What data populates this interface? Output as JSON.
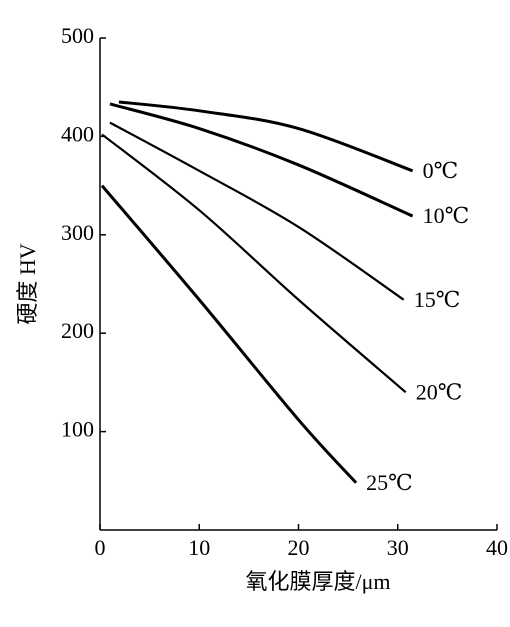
{
  "chart_data": {
    "type": "line",
    "xlabel": "氧化膜厚度/μm",
    "ylabel": "硬度  HV",
    "xlim": [
      0,
      40
    ],
    "xticks": [
      0,
      10,
      20,
      30,
      40
    ],
    "ylim": [
      0,
      500
    ],
    "yticks": [
      100,
      200,
      300,
      400,
      500
    ],
    "color": "#000000",
    "series": [
      {
        "name": "0℃",
        "x": [
          1.9,
          10,
          20,
          31.5
        ],
        "values": [
          435,
          426,
          408,
          365
        ]
      },
      {
        "name": "10℃",
        "x": [
          1,
          10,
          20,
          31.5
        ],
        "values": [
          433,
          408,
          371,
          319
        ]
      },
      {
        "name": "15℃",
        "x": [
          1,
          10,
          20,
          30.6
        ],
        "values": [
          414,
          365,
          308,
          234
        ]
      },
      {
        "name": "20℃",
        "x": [
          0.2,
          10,
          20,
          30.8
        ],
        "values": [
          402,
          325,
          234,
          140
        ]
      },
      {
        "name": "25℃",
        "x": [
          0.2,
          10,
          20,
          25.8
        ],
        "values": [
          350,
          234,
          112,
          48
        ]
      }
    ]
  }
}
